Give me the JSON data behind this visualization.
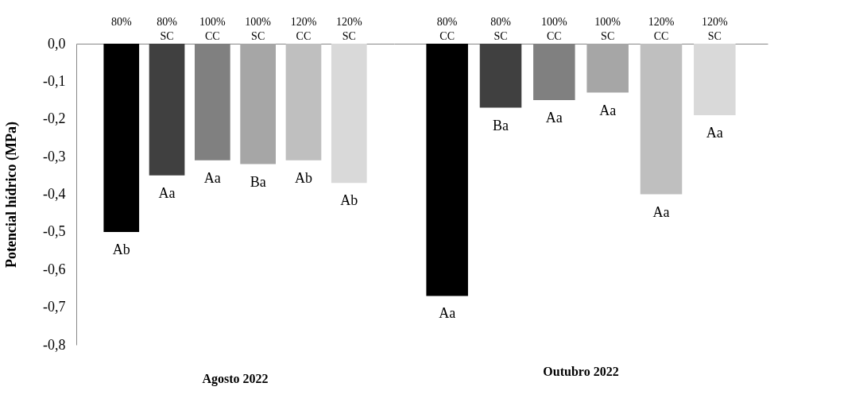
{
  "chart_data": [
    {
      "type": "bar",
      "categories": [
        "80%",
        "80% SC",
        "100% CC",
        "100% SC",
        "120% CC",
        "120% SC"
      ],
      "values": [
        -0.5,
        -0.35,
        -0.31,
        -0.32,
        -0.31,
        -0.37
      ],
      "colors": [
        "#000000",
        "#404040",
        "#808080",
        "#a6a6a6",
        "#bfbfbf",
        "#d9d9d9"
      ],
      "value_labels": [
        "Ab",
        "Aa",
        "Aa",
        "Ba",
        "Ab",
        "Ab"
      ],
      "xlabel": "Agosto 2022",
      "ylabel": "Potencial hídrico (MPa)",
      "ylim": [
        -0.8,
        0
      ],
      "yticks": [
        {
          "value": 0,
          "label": "0,0"
        },
        {
          "value": -0.1,
          "label": "-0,1"
        },
        {
          "value": -0.2,
          "label": "-0,2"
        },
        {
          "value": -0.3,
          "label": "-0,3"
        },
        {
          "value": -0.4,
          "label": "-0,4"
        },
        {
          "value": -0.5,
          "label": "-0,5"
        },
        {
          "value": -0.6,
          "label": "-0,6"
        },
        {
          "value": -0.7,
          "label": "-0,7"
        },
        {
          "value": -0.8,
          "label": "-0,8"
        }
      ]
    },
    {
      "type": "bar",
      "categories": [
        "80% CC",
        "80% SC",
        "100% CC",
        "100% SC",
        "120% CC",
        "120% SC"
      ],
      "values": [
        -0.67,
        -0.17,
        -0.15,
        -0.13,
        -0.4,
        -0.19
      ],
      "colors": [
        "#000000",
        "#404040",
        "#808080",
        "#a6a6a6",
        "#bfbfbf",
        "#d9d9d9"
      ],
      "value_labels": [
        "Aa",
        "Ba",
        "Aa",
        "Aa",
        "Aa",
        "Aa"
      ],
      "xlabel": "Outubro 2022",
      "ylim": [
        -0.8,
        0
      ],
      "tick_labels": "x"
    }
  ]
}
